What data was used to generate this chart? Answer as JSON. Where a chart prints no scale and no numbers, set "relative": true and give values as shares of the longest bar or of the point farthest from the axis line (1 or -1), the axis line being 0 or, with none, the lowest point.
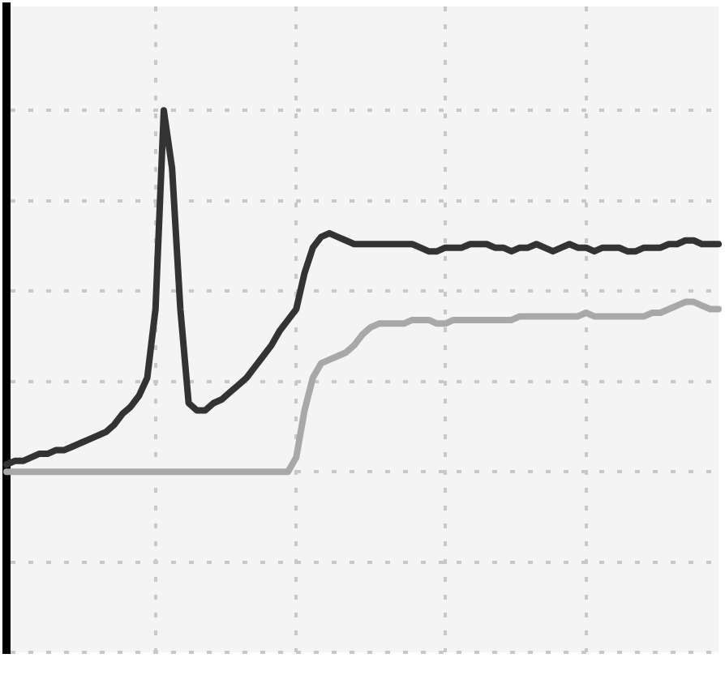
{
  "chart_data": {
    "type": "line",
    "relative": true,
    "grid": true,
    "categories": [
      null,
      null,
      null,
      null,
      null,
      null,
      null,
      null,
      null,
      null,
      null,
      null,
      null,
      null,
      null,
      null,
      null,
      null,
      null,
      null,
      null,
      null,
      null,
      null,
      null,
      null,
      null,
      null,
      null,
      null,
      null,
      null,
      null,
      null,
      null,
      null,
      null,
      null,
      null,
      null,
      null,
      null,
      null,
      null,
      null,
      null,
      null,
      null,
      null,
      null,
      null,
      null,
      null,
      null,
      null,
      null,
      null,
      null,
      null,
      null,
      null,
      null,
      null,
      null,
      null,
      null,
      null,
      null,
      null,
      null,
      null,
      null,
      null,
      null,
      null,
      null,
      null,
      null,
      null,
      null,
      null,
      null,
      null,
      null,
      null,
      null,
      null
    ],
    "series": [
      {
        "color": "#333333",
        "values": [
          0.02,
          0.03,
          0.03,
          0.04,
          0.05,
          0.05,
          0.06,
          0.06,
          0.07,
          0.08,
          0.09,
          0.1,
          0.11,
          0.13,
          0.16,
          0.18,
          0.21,
          0.26,
          0.45,
          1,
          0.84,
          0.45,
          0.19,
          0.17,
          0.17,
          0.19,
          0.2,
          0.22,
          0.24,
          0.26,
          0.29,
          0.32,
          0.35,
          0.39,
          0.42,
          0.45,
          0.55,
          0.62,
          0.65,
          0.66,
          0.65,
          0.64,
          0.63,
          0.63,
          0.63,
          0.63,
          0.63,
          0.63,
          0.63,
          0.63,
          0.62,
          0.61,
          0.61,
          0.62,
          0.62,
          0.62,
          0.63,
          0.63,
          0.63,
          0.62,
          0.62,
          0.61,
          0.62,
          0.62,
          0.63,
          0.62,
          0.61,
          0.62,
          0.63,
          0.62,
          0.62,
          0.61,
          0.62,
          0.62,
          0.62,
          0.61,
          0.61,
          0.62,
          0.62,
          0.62,
          0.63,
          0.63,
          0.64,
          0.64,
          0.63,
          0.63,
          0.63
        ]
      },
      {
        "color": "#a8a8a8",
        "values": [
          0,
          0,
          0,
          0,
          0,
          0,
          0,
          0,
          0,
          0,
          0,
          0,
          0,
          0,
          0,
          0,
          0,
          0,
          0,
          0,
          0,
          0,
          0,
          0,
          0,
          0,
          0,
          0,
          0,
          0,
          0,
          0,
          0,
          0,
          0,
          0.04,
          0.17,
          0.26,
          0.3,
          0.31,
          0.32,
          0.33,
          0.35,
          0.38,
          0.4,
          0.41,
          0.41,
          0.41,
          0.41,
          0.42,
          0.42,
          0.42,
          0.41,
          0.41,
          0.42,
          0.42,
          0.42,
          0.42,
          0.42,
          0.42,
          0.42,
          0.42,
          0.43,
          0.43,
          0.43,
          0.43,
          0.43,
          0.43,
          0.43,
          0.43,
          0.44,
          0.43,
          0.43,
          0.43,
          0.43,
          0.43,
          0.43,
          0.43,
          0.44,
          0.44,
          0.45,
          0.46,
          0.47,
          0.47,
          0.46,
          0.45,
          0.45
        ]
      }
    ]
  }
}
